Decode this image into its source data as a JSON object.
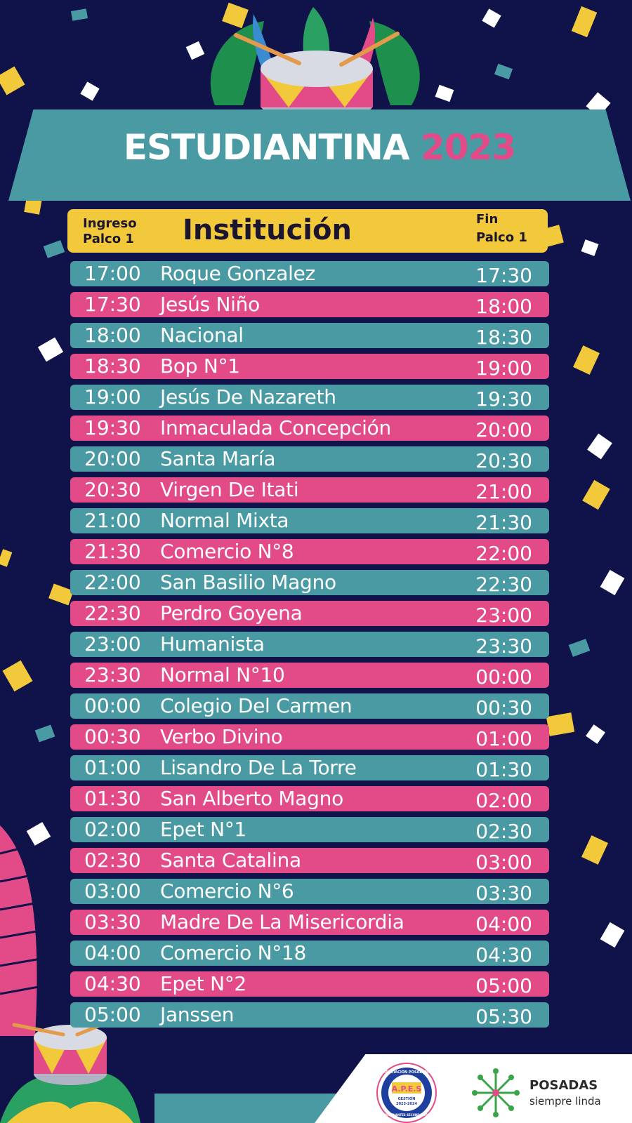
{
  "title": {
    "main": "ESTUDIANTINA",
    "year": "2023"
  },
  "header": {
    "ingreso": [
      "Ingreso",
      "Palco 1"
    ],
    "institucion": "Institución",
    "fin": [
      "Fin",
      "Palco 1"
    ]
  },
  "schedule": [
    {
      "start": "17:00",
      "institution": "Roque Gonzalez",
      "end": "17:30"
    },
    {
      "start": "17:30",
      "institution": "Jesús Niño",
      "end": "18:00"
    },
    {
      "start": "18:00",
      "institution": "Nacional",
      "end": "18:30"
    },
    {
      "start": "18:30",
      "institution": "Bop N°1",
      "end": "19:00"
    },
    {
      "start": "19:00",
      "institution": "Jesús De Nazareth",
      "end": "19:30"
    },
    {
      "start": "19:30",
      "institution": "Inmaculada Concepción",
      "end": "20:00"
    },
    {
      "start": "20:00",
      "institution": "Santa María",
      "end": "20:30"
    },
    {
      "start": "20:30",
      "institution": "Virgen De Itati",
      "end": "21:00"
    },
    {
      "start": "21:00",
      "institution": "Normal Mixta",
      "end": "21:30"
    },
    {
      "start": "21:30",
      "institution": "Comercio N°8",
      "end": "22:00"
    },
    {
      "start": "22:00",
      "institution": "San Basilio Magno",
      "end": "22:30"
    },
    {
      "start": "22:30",
      "institution": "Perdro Goyena",
      "end": "23:00"
    },
    {
      "start": "23:00",
      "institution": "Humanista",
      "end": "23:30"
    },
    {
      "start": "23:30",
      "institution": "Normal N°10",
      "end": "00:00"
    },
    {
      "start": "00:00",
      "institution": "Colegio Del Carmen",
      "end": "00:30"
    },
    {
      "start": "00:30",
      "institution": "Verbo Divino",
      "end": "01:00"
    },
    {
      "start": "01:00",
      "institution": "Lisandro De La Torre",
      "end": "01:30"
    },
    {
      "start": "01:30",
      "institution": "San Alberto Magno",
      "end": "02:00"
    },
    {
      "start": "02:00",
      "institution": "Epet N°1",
      "end": "02:30"
    },
    {
      "start": "02:30",
      "institution": "Santa Catalina",
      "end": "03:00"
    },
    {
      "start": "03:00",
      "institution": "Comercio N°6",
      "end": "03:30"
    },
    {
      "start": "03:30",
      "institution": "Madre De La Misericordia",
      "end": "04:00"
    },
    {
      "start": "04:00",
      "institution": "Comercio N°18",
      "end": "04:30"
    },
    {
      "start": "04:30",
      "institution": "Epet N°2",
      "end": "05:00"
    },
    {
      "start": "05:00",
      "institution": "Janssen",
      "end": "05:30"
    }
  ],
  "footer": {
    "apes_logo_text": [
      "ASOCIACIÓN POSADEÑA",
      "A.P.E.S",
      "GESTIÓN",
      "2023-2024",
      "ESTUDIANTES SECUNDARIOS"
    ],
    "posadas_name": "POSADAS",
    "posadas_tagline": "siempre linda"
  },
  "colors": {
    "background": "#10124a",
    "teal": "#4a9aa4",
    "pink": "#e24b87",
    "yellow": "#f2c93b",
    "posadas_green": "#3aa548"
  },
  "icons": [
    "drum-icon",
    "palm-leaf-icon",
    "confetti-pieces",
    "apes-logo",
    "posadas-flower-icon"
  ]
}
